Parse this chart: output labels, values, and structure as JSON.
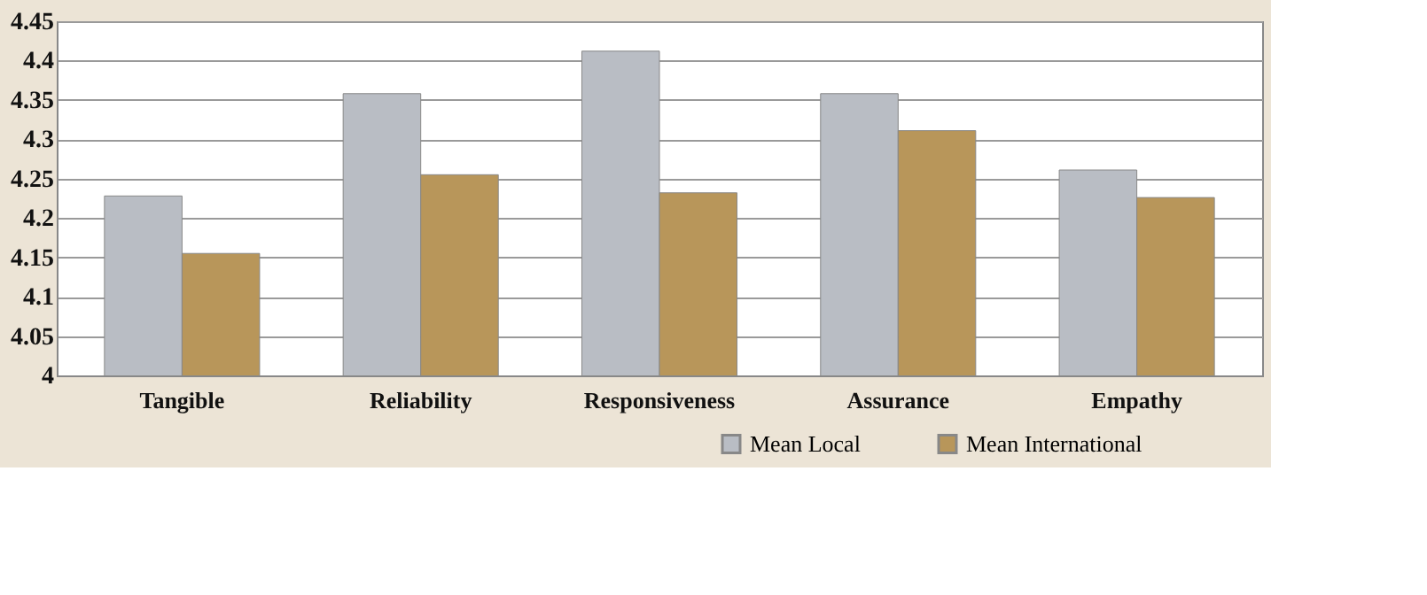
{
  "chart_data": {
    "type": "bar",
    "categories": [
      "Tangible",
      "Reliability",
      "Responsiveness",
      "Assurance",
      "Empathy"
    ],
    "series": [
      {
        "name": "Mean Local",
        "color": "#b9bdc4",
        "values": [
          4.228,
          4.358,
          4.412,
          4.358,
          4.261
        ]
      },
      {
        "name": "Mean International",
        "color": "#b8965a",
        "values": [
          4.155,
          4.255,
          4.232,
          4.311,
          4.226
        ]
      }
    ],
    "ylim": [
      4,
      4.45
    ],
    "yticks": [
      4,
      4.05,
      4.1,
      4.15,
      4.2,
      4.25,
      4.3,
      4.35,
      4.4,
      4.45
    ],
    "grid": "y",
    "legend": "bottom right"
  }
}
